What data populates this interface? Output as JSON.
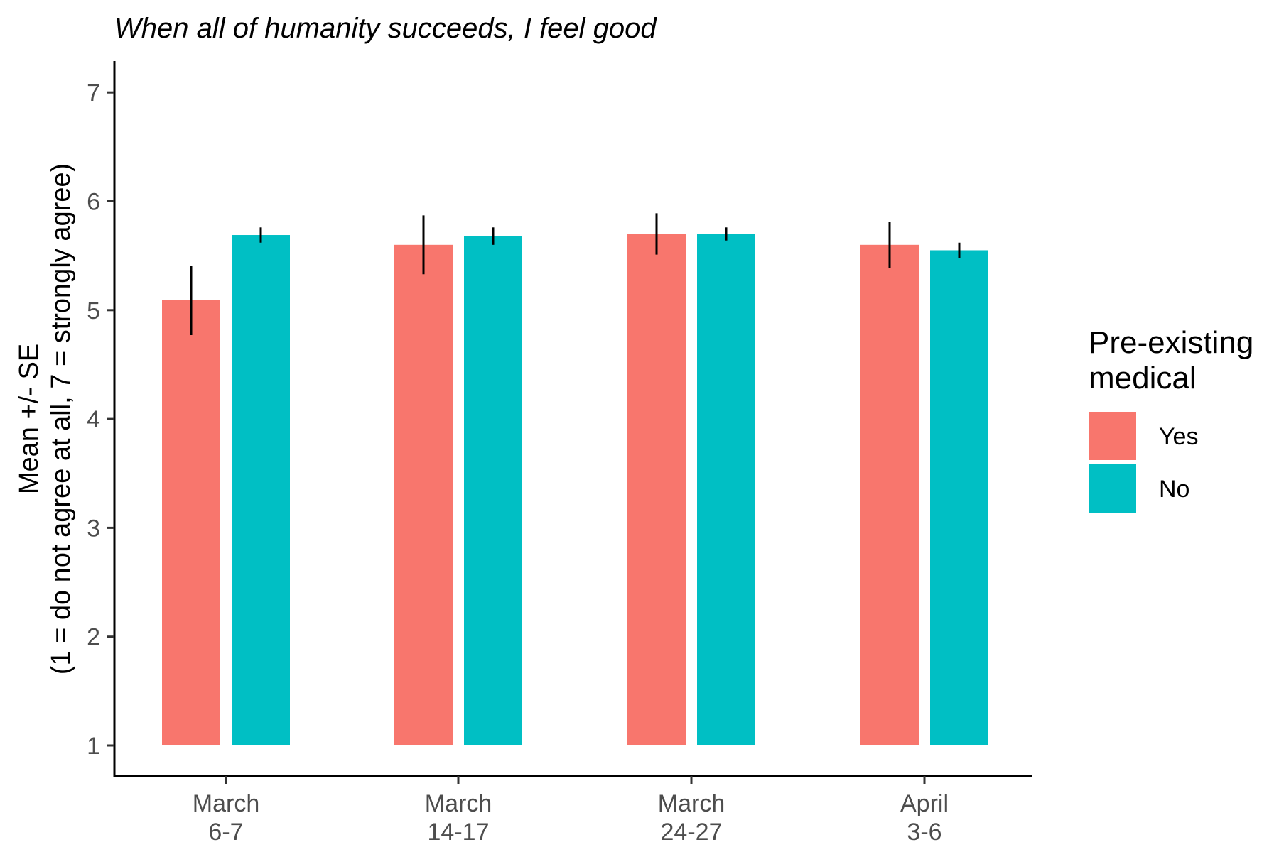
{
  "chart_data": {
    "type": "bar",
    "title": "When all of humanity succeeds, I feel good",
    "ylabel_lines": [
      "Mean +/- SE",
      "(1 = do not agree at all, 7 = strongly agree)"
    ],
    "xlabel": "",
    "ylim": [
      0.7,
      7.28
    ],
    "bar_baseline": 1,
    "yticks": [
      1,
      2,
      3,
      4,
      5,
      6,
      7
    ],
    "grid": false,
    "legend_position": "right",
    "categories": [
      {
        "lines": [
          "March",
          "6-7"
        ]
      },
      {
        "lines": [
          "March",
          "14-17"
        ]
      },
      {
        "lines": [
          "March",
          "24-27"
        ]
      },
      {
        "lines": [
          "April",
          "3-6"
        ]
      }
    ],
    "legend": {
      "title_lines": [
        "Pre-existing",
        "medical"
      ]
    },
    "series": [
      {
        "name": "Yes",
        "color": "#F8766D",
        "values": [
          5.09,
          5.6,
          5.7,
          5.6
        ],
        "se": [
          0.32,
          0.27,
          0.19,
          0.21
        ]
      },
      {
        "name": "No",
        "color": "#00BFC4",
        "values": [
          5.69,
          5.68,
          5.7,
          5.55
        ],
        "se": [
          0.07,
          0.08,
          0.06,
          0.07
        ]
      }
    ]
  }
}
